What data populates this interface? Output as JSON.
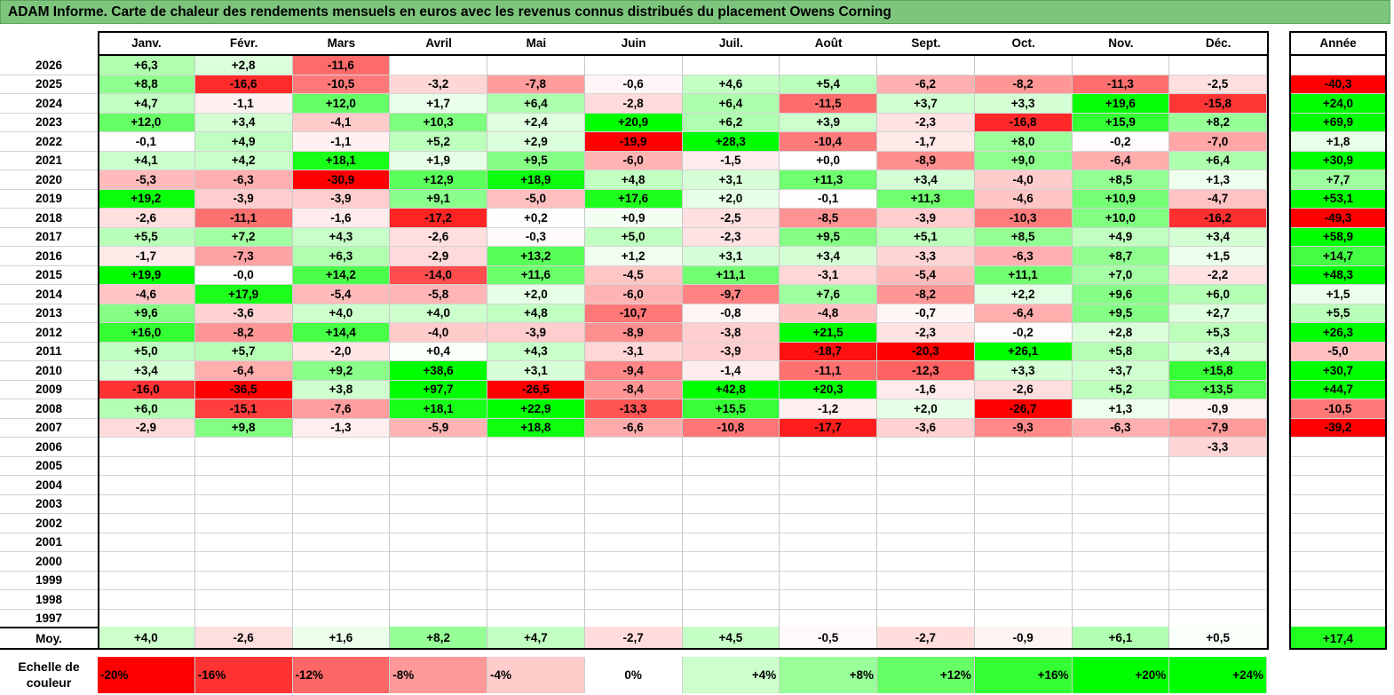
{
  "title": "ADAM Informe. Carte de chaleur des rendements mensuels en euros avec les revenus connus distribués du placement Owens Corning",
  "chart_data": {
    "type": "heatmap",
    "title": "ADAM Informe. Carte de chaleur des rendements mensuels en euros avec les revenus connus distribués du placement Owens Corning",
    "columns": [
      "Janv.",
      "Févr.",
      "Mars",
      "Avril",
      "Mai",
      "Juin",
      "Juil.",
      "Août",
      "Sept.",
      "Oct.",
      "Nov.",
      "Déc."
    ],
    "year_column_label": "Année",
    "rows": [
      {
        "year": "2026",
        "months": [
          "+6,3",
          "+2,8",
          "-11,6",
          "",
          "",
          "",
          "",
          "",
          "",
          "",
          "",
          ""
        ],
        "annual": ""
      },
      {
        "year": "2025",
        "months": [
          "+8,8",
          "-16,6",
          "-10,5",
          "-3,2",
          "-7,8",
          "-0,6",
          "+4,6",
          "+5,4",
          "-6,2",
          "-8,2",
          "-11,3",
          "-2,5"
        ],
        "annual": "-40,3"
      },
      {
        "year": "2024",
        "months": [
          "+4,7",
          "-1,1",
          "+12,0",
          "+1,7",
          "+6,4",
          "-2,8",
          "+6,4",
          "-11,5",
          "+3,7",
          "+3,3",
          "+19,6",
          "-15,8"
        ],
        "annual": "+24,0"
      },
      {
        "year": "2023",
        "months": [
          "+12,0",
          "+3,4",
          "-4,1",
          "+10,3",
          "+2,4",
          "+20,9",
          "+6,2",
          "+3,9",
          "-2,3",
          "-16,8",
          "+15,9",
          "+8,2"
        ],
        "annual": "+69,9"
      },
      {
        "year": "2022",
        "months": [
          "-0,1",
          "+4,9",
          "-1,1",
          "+5,2",
          "+2,9",
          "-19,9",
          "+28,3",
          "-10,4",
          "-1,7",
          "+8,0",
          "-0,2",
          "-7,0"
        ],
        "annual": "+1,8"
      },
      {
        "year": "2021",
        "months": [
          "+4,1",
          "+4,2",
          "+18,1",
          "+1,9",
          "+9,5",
          "-6,0",
          "-1,5",
          "+0,0",
          "-8,9",
          "+9,0",
          "-6,4",
          "+6,4"
        ],
        "annual": "+30,9"
      },
      {
        "year": "2020",
        "months": [
          "-5,3",
          "-6,3",
          "-30,9",
          "+12,9",
          "+18,9",
          "+4,8",
          "+3,1",
          "+11,3",
          "+3,4",
          "-4,0",
          "+8,5",
          "+1,3"
        ],
        "annual": "+7,7"
      },
      {
        "year": "2019",
        "months": [
          "+19,2",
          "-3,9",
          "-3,9",
          "+9,1",
          "-5,0",
          "+17,6",
          "+2,0",
          "-0,1",
          "+11,3",
          "-4,6",
          "+10,9",
          "-4,7"
        ],
        "annual": "+53,1"
      },
      {
        "year": "2018",
        "months": [
          "-2,6",
          "-11,1",
          "-1,6",
          "-17,2",
          "+0,2",
          "+0,9",
          "-2,5",
          "-8,5",
          "-3,9",
          "-10,3",
          "+10,0",
          "-16,2"
        ],
        "annual": "-49,3"
      },
      {
        "year": "2017",
        "months": [
          "+5,5",
          "+7,2",
          "+4,3",
          "-2,6",
          "-0,3",
          "+5,0",
          "-2,3",
          "+9,5",
          "+5,1",
          "+8,5",
          "+4,9",
          "+3,4"
        ],
        "annual": "+58,9"
      },
      {
        "year": "2016",
        "months": [
          "-1,7",
          "-7,3",
          "+6,3",
          "-2,9",
          "+13,2",
          "+1,2",
          "+3,1",
          "+3,4",
          "-3,3",
          "-6,3",
          "+8,7",
          "+1,5"
        ],
        "annual": "+14,7"
      },
      {
        "year": "2015",
        "months": [
          "+19,9",
          "-0,0",
          "+14,2",
          "-14,0",
          "+11,6",
          "-4,5",
          "+11,1",
          "-3,1",
          "-5,4",
          "+11,1",
          "+7,0",
          "-2,2"
        ],
        "annual": "+48,3"
      },
      {
        "year": "2014",
        "months": [
          "-4,6",
          "+17,9",
          "-5,4",
          "-5,8",
          "+2,0",
          "-6,0",
          "-9,7",
          "+7,6",
          "-8,2",
          "+2,2",
          "+9,6",
          "+6,0"
        ],
        "annual": "+1,5"
      },
      {
        "year": "2013",
        "months": [
          "+9,6",
          "-3,6",
          "+4,0",
          "+4,0",
          "+4,8",
          "-10,7",
          "-0,8",
          "-4,8",
          "-0,7",
          "-6,4",
          "+9,5",
          "+2,7"
        ],
        "annual": "+5,5"
      },
      {
        "year": "2012",
        "months": [
          "+16,0",
          "-8,2",
          "+14,4",
          "-4,0",
          "-3,9",
          "-8,9",
          "-3,8",
          "+21,5",
          "-2,3",
          "-0,2",
          "+2,8",
          "+5,3"
        ],
        "annual": "+26,3"
      },
      {
        "year": "2011",
        "months": [
          "+5,0",
          "+5,7",
          "-2,0",
          "+0,4",
          "+4,3",
          "-3,1",
          "-3,9",
          "-18,7",
          "-20,3",
          "+26,1",
          "+5,8",
          "+3,4"
        ],
        "annual": "-5,0"
      },
      {
        "year": "2010",
        "months": [
          "+3,4",
          "-6,4",
          "+9,2",
          "+38,6",
          "+3,1",
          "-9,4",
          "-1,4",
          "-11,1",
          "-12,3",
          "+3,3",
          "+3,7",
          "+15,8"
        ],
        "annual": "+30,7"
      },
      {
        "year": "2009",
        "months": [
          "-16,0",
          "-36,5",
          "+3,8",
          "+97,7",
          "-26,5",
          "-8,4",
          "+42,8",
          "+20,3",
          "-1,6",
          "-2,6",
          "+5,2",
          "+13,5"
        ],
        "annual": "+44,7"
      },
      {
        "year": "2008",
        "months": [
          "+6,0",
          "-15,1",
          "-7,6",
          "+18,1",
          "+22,9",
          "-13,3",
          "+15,5",
          "-1,2",
          "+2,0",
          "-26,7",
          "+1,3",
          "-0,9"
        ],
        "annual": "-10,5"
      },
      {
        "year": "2007",
        "months": [
          "-2,9",
          "+9,8",
          "-1,3",
          "-5,9",
          "+18,8",
          "-6,6",
          "-10,8",
          "-17,7",
          "-3,6",
          "-9,3",
          "-6,3",
          "-7,9"
        ],
        "annual": "-39,2"
      },
      {
        "year": "2006",
        "months": [
          "",
          "",
          "",
          "",
          "",
          "",
          "",
          "",
          "",
          "",
          "",
          "-3,3"
        ],
        "annual": ""
      },
      {
        "year": "2005",
        "months": [
          "",
          "",
          "",
          "",
          "",
          "",
          "",
          "",
          "",
          "",
          "",
          ""
        ],
        "annual": ""
      },
      {
        "year": "2004",
        "months": [
          "",
          "",
          "",
          "",
          "",
          "",
          "",
          "",
          "",
          "",
          "",
          ""
        ],
        "annual": ""
      },
      {
        "year": "2003",
        "months": [
          "",
          "",
          "",
          "",
          "",
          "",
          "",
          "",
          "",
          "",
          "",
          ""
        ],
        "annual": ""
      },
      {
        "year": "2002",
        "months": [
          "",
          "",
          "",
          "",
          "",
          "",
          "",
          "",
          "",
          "",
          "",
          ""
        ],
        "annual": ""
      },
      {
        "year": "2001",
        "months": [
          "",
          "",
          "",
          "",
          "",
          "",
          "",
          "",
          "",
          "",
          "",
          ""
        ],
        "annual": ""
      },
      {
        "year": "2000",
        "months": [
          "",
          "",
          "",
          "",
          "",
          "",
          "",
          "",
          "",
          "",
          "",
          ""
        ],
        "annual": ""
      },
      {
        "year": "1999",
        "months": [
          "",
          "",
          "",
          "",
          "",
          "",
          "",
          "",
          "",
          "",
          "",
          ""
        ],
        "annual": ""
      },
      {
        "year": "1998",
        "months": [
          "",
          "",
          "",
          "",
          "",
          "",
          "",
          "",
          "",
          "",
          "",
          ""
        ],
        "annual": ""
      },
      {
        "year": "1997",
        "months": [
          "",
          "",
          "",
          "",
          "",
          "",
          "",
          "",
          "",
          "",
          "",
          ""
        ],
        "annual": ""
      }
    ],
    "average": {
      "label": "Moy.",
      "months": [
        "+4,0",
        "-2,6",
        "+1,6",
        "+8,2",
        "+4,7",
        "-2,7",
        "+4,5",
        "-0,5",
        "-2,7",
        "-0,9",
        "+6,1",
        "+0,5"
      ],
      "annual": "+17,4"
    },
    "color_scale": {
      "label": "Echelle de couleur",
      "stops": [
        "-20%",
        "-16%",
        "-12%",
        "-8%",
        "-4%",
        "0%",
        "+4%",
        "+8%",
        "+12%",
        "+16%",
        "+20%",
        "+24%"
      ],
      "negative_color": "#ff0000",
      "neutral_color": "#ffffff",
      "positive_color": "#00ff00"
    }
  }
}
